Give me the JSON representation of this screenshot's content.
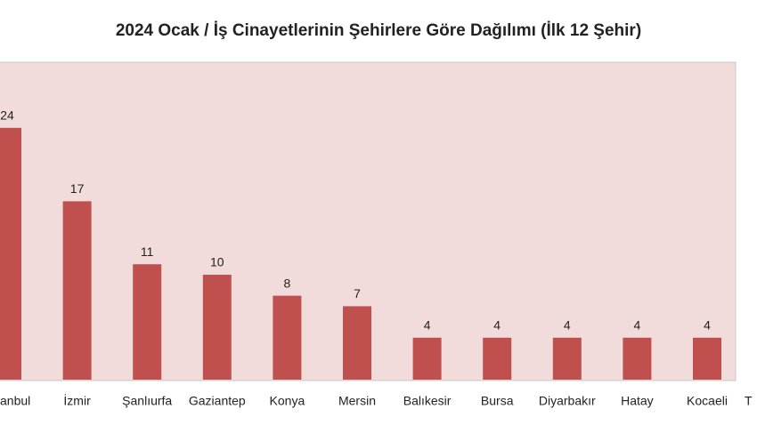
{
  "chart_data": {
    "type": "bar",
    "title": "2024 Ocak / İş Cinayetlerinin Şehirlere Göre Dağılımı (İlk 12 Şehir)",
    "categories": [
      "anbul",
      "İzmir",
      "Şanlıurfa",
      "Gaziantep",
      "Konya",
      "Mersin",
      "Balıkesir",
      "Bursa",
      "Diyarbakır",
      "Hatay",
      "Kocaeli",
      "T"
    ],
    "values": [
      24,
      17,
      11,
      10,
      8,
      7,
      4,
      4,
      4,
      4,
      4,
      null
    ],
    "color": "#c0504d",
    "ylim": [
      0,
      30
    ],
    "grid": false
  }
}
